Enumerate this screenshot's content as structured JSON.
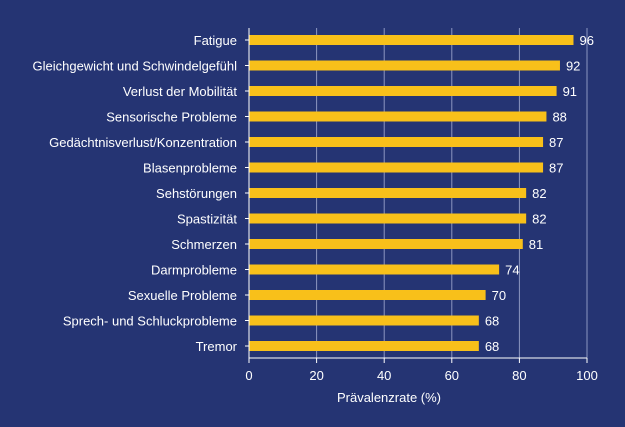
{
  "chart_data": {
    "type": "bar",
    "orientation": "horizontal",
    "categories": [
      "Fatigue",
      "Gleichgewicht und Schwindelgefühl",
      "Verlust der Mobilität",
      "Sensorische Probleme",
      "Gedächtnisverlust/Konzentration",
      "Blasenprobleme",
      "Sehstörungen",
      "Spastizität",
      "Schmerzen",
      "Darmprobleme",
      "Sexuelle Probleme",
      "Sprech- und Schluckprobleme",
      "Tremor"
    ],
    "values": [
      96,
      92,
      91,
      88,
      87,
      87,
      82,
      82,
      81,
      74,
      70,
      68,
      68
    ],
    "xlabel": "Prävalenzrate (%)",
    "ylabel": "",
    "xlim": [
      0,
      100
    ],
    "xticks": [
      0,
      20,
      40,
      60,
      80,
      100
    ],
    "grid": true,
    "legend": "none",
    "colors": {
      "background": "#253473",
      "bar": "#F8C01A",
      "grid": "#8C96C0",
      "axis": "#FFFFFF",
      "text": "#FFFFFF"
    }
  }
}
